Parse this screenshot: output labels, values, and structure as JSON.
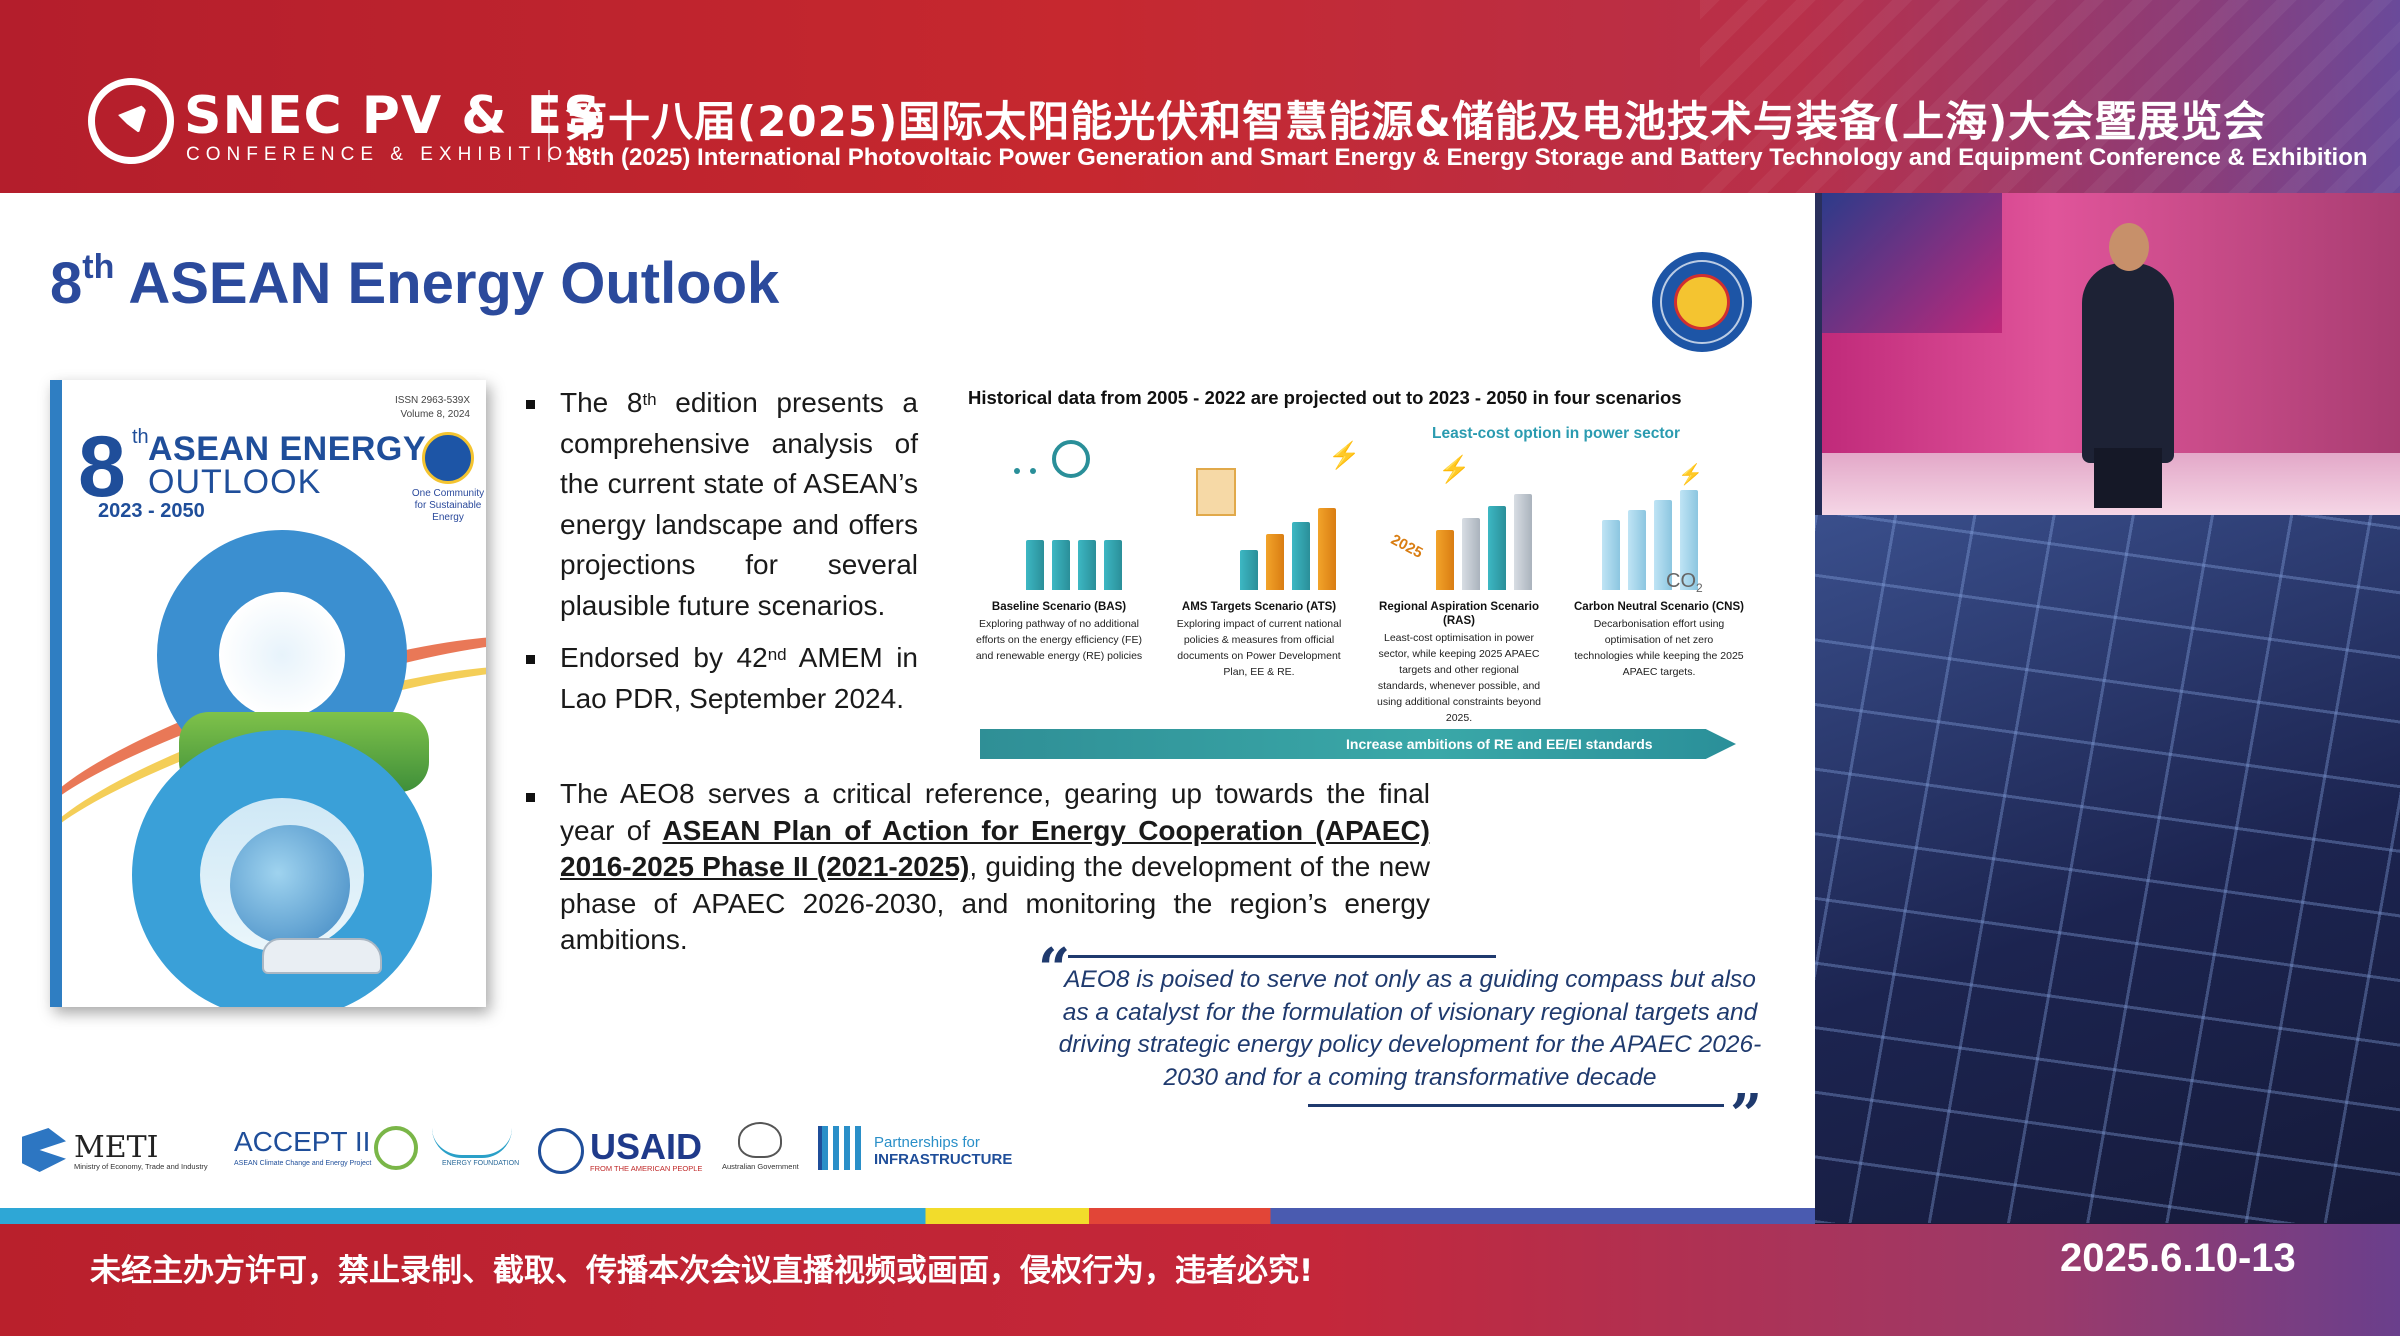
{
  "banner": {
    "brand": "SNEC PV & ES",
    "brand_sub": "CONFERENCE & EXHIBITION",
    "title_cn": "第十八届(2025)国际太阳能光伏和智慧能源&储能及电池技术与装备(上海)大会暨展览会",
    "title_en": "18th (2025) International Photovoltaic Power Generation and Smart Energy & Energy Storage and Battery Technology and Equipment Conference & Exhibition"
  },
  "slide": {
    "title_num": "8",
    "title_sup": "th",
    "title_rest": " ASEAN Energy Outlook",
    "logo_alt": "ASEAN CENTRE FOR ENERGY",
    "book": {
      "issn": "ISSN 2963-539X",
      "volume": "Volume 8, 2024",
      "num": "8",
      "sup": "th",
      "line1": "ASEAN ENERGY",
      "line2": "OUTLOOK",
      "years": "2023 - 2050",
      "tagline": "One Community for Sustainable Energy"
    },
    "bullets": {
      "b1_pre": "The 8",
      "b1_sup": "th",
      "b1_post": " edition presents a comprehensive analysis of the current state of ASEAN’s energy landscape and offers projections for several plausible future scenarios.",
      "b2_pre": "Endorsed by 42",
      "b2_sup": "nd",
      "b2_post": " AMEM in Lao PDR, September 2024.",
      "b3_pre": "The AEO8 serves a critical reference, gearing up towards the final year of ",
      "b3_link": "ASEAN Plan of Action for Energy Cooperation (APAEC) 2016-2025 Phase II (2021-2025)",
      "b3_post": ", guiding the development of the new phase of APAEC 2026-2030, and monitoring the region’s energy ambitions."
    },
    "infographic": {
      "heading": "Historical data from 2005 - 2022 are projected out to 2023 - 2050 in four scenarios",
      "least_cost": "Least-cost option in power sector",
      "year_label": "2025",
      "co2_label": "CO",
      "co2_sub": "2",
      "scenarios": [
        {
          "title": "Baseline Scenario (BAS)",
          "desc": "Exploring pathway of no additional efforts on the energy efficiency (FE) and renewable energy (RE) policies"
        },
        {
          "title": "AMS Targets Scenario (ATS)",
          "desc": "Exploring impact of current national policies & measures from official documents on Power Development Plan, EE & RE."
        },
        {
          "title": "Regional Aspiration Scenario (RAS)",
          "desc": "Least-cost optimisation in power sector, while keeping 2025 APAEC targets and other regional standards, whenever possible, and using additional constraints beyond 2025."
        },
        {
          "title": "Carbon Neutral Scenario (CNS)",
          "desc": "Decarbonisation effort using optimisation of net zero technologies while keeping the 2025 APAEC targets."
        }
      ],
      "arrow_label": "Increase ambitions of RE and EE/EI standards"
    },
    "quote": "AEO8 is poised to serve not only as a guiding compass but also as a catalyst for the formulation of visionary regional targets and driving strategic energy policy development for the APAEC 2026-2030 and for a coming transformative decade",
    "partners": {
      "meti": "METI",
      "meti_sub": "Ministry of Economy, Trade and Industry",
      "accept": "ACCEPT II",
      "accept_sub": "ASEAN Climate Change and Energy Project",
      "energy_foundation": "ENERGY FOUNDATION",
      "usaid": "USAID",
      "usaid_sub": "FROM THE AMERICAN PEOPLE",
      "australia": "Australian Government",
      "pfi_1": "Partnerships for",
      "pfi_2": "INFRASTRUCTURE"
    }
  },
  "footer": {
    "notice": "未经主办方许可，禁止录制、截取、传播本次会议直播视频或画面，侵权行为，违者必究!",
    "date": "2025.6.10-13"
  },
  "colors": {
    "banner_red": "#c6282f",
    "title_blue": "#2b4a9c",
    "teal": "#2a8f99",
    "quote_navy": "#1f3a6e"
  }
}
